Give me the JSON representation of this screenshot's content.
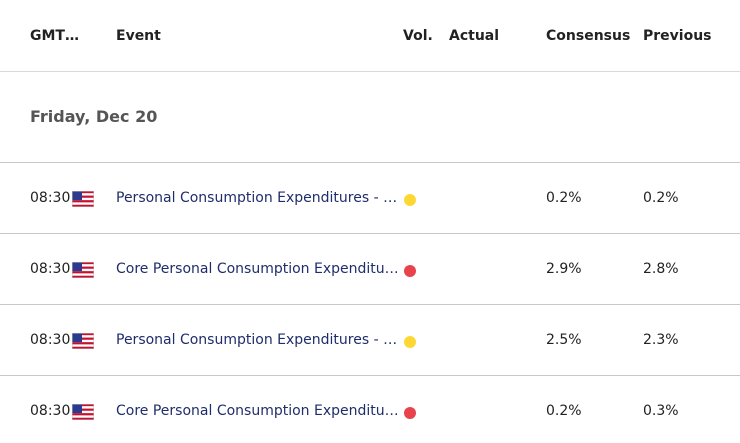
{
  "headers": {
    "time": "GMT…",
    "event": "Event",
    "vol": "Vol.",
    "actual": "Actual",
    "consensus": "Consensus",
    "previous": "Previous"
  },
  "date_label": "Friday, Dec 20",
  "colors": {
    "vol_medium": "#fdd835",
    "vol_high": "#e8424d",
    "event_link": "#1f2d6b"
  },
  "rows": [
    {
      "time": "08:30",
      "flag": "us-flag-icon",
      "event": "Personal Consumption Expenditures - P…",
      "volatility": "medium",
      "actual": "",
      "consensus": "0.2%",
      "previous": "0.2%"
    },
    {
      "time": "08:30",
      "flag": "us-flag-icon",
      "event": "Core Personal Consumption Expenditur…",
      "volatility": "high",
      "actual": "",
      "consensus": "2.9%",
      "previous": "2.8%"
    },
    {
      "time": "08:30",
      "flag": "us-flag-icon",
      "event": "Personal Consumption Expenditures - P…",
      "volatility": "medium",
      "actual": "",
      "consensus": "2.5%",
      "previous": "2.3%"
    },
    {
      "time": "08:30",
      "flag": "us-flag-icon",
      "event": "Core Personal Consumption Expenditur…",
      "volatility": "high",
      "actual": "",
      "consensus": "0.2%",
      "previous": "0.3%"
    }
  ]
}
